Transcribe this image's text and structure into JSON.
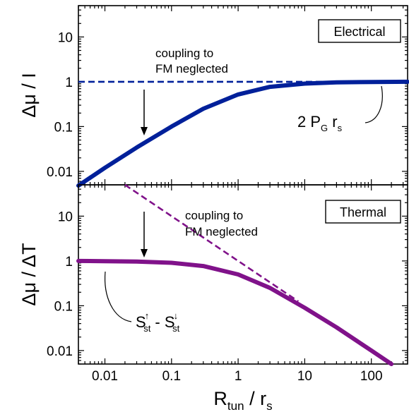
{
  "chart_data": [
    {
      "type": "line",
      "panel": "top",
      "box_label": "Electrical",
      "ylabel": "Δμ / I",
      "xscale": "log",
      "yscale": "log",
      "xlim": [
        0.004,
        350
      ],
      "ylim": [
        0.005,
        50
      ],
      "yticks": [
        0.01,
        0.1,
        1,
        10
      ],
      "ytick_labels": [
        "0.01",
        "0.1",
        "1",
        "10"
      ],
      "series": [
        {
          "style": "solid",
          "color": "#00209a",
          "x": [
            0.004,
            0.01,
            0.03,
            0.1,
            0.3,
            1,
            3,
            10,
            30,
            100,
            350
          ],
          "y": [
            0.0048,
            0.012,
            0.034,
            0.1,
            0.25,
            0.52,
            0.77,
            0.91,
            0.97,
            0.99,
            1.0
          ]
        },
        {
          "style": "dashed",
          "color": "#00209a",
          "x": [
            0.004,
            350
          ],
          "y": [
            1,
            1
          ]
        }
      ],
      "annotations": [
        {
          "text_lines": [
            "coupling to",
            "FM neglected"
          ]
        },
        {
          "type": "arrow",
          "x": 0.04,
          "y_from": 0.9,
          "y_to": 0.05
        },
        {
          "math": {
            "prefix": "2 P",
            "sub1": "G",
            "mid": " r",
            "sub2": "s"
          }
        }
      ]
    },
    {
      "type": "line",
      "panel": "bottom",
      "box_label": "Thermal",
      "ylabel": "Δμ / ΔT",
      "xlabel": {
        "main": "R",
        "sub1": "tun",
        "mid": " / r",
        "sub2": "s"
      },
      "xscale": "log",
      "yscale": "log",
      "xlim": [
        0.004,
        350
      ],
      "ylim": [
        0.005,
        50
      ],
      "xticks": [
        0.01,
        0.1,
        1,
        10,
        100
      ],
      "xtick_labels": [
        "0.01",
        "0.1",
        "1",
        "10",
        "100"
      ],
      "yticks": [
        0.01,
        0.1,
        1,
        10
      ],
      "ytick_labels": [
        "0.01",
        "0.1",
        "1",
        "10"
      ],
      "series": [
        {
          "style": "solid",
          "color": "#80128a",
          "x": [
            0.004,
            0.01,
            0.03,
            0.1,
            0.3,
            1,
            3,
            10,
            30,
            100,
            200
          ],
          "y": [
            1.0,
            0.99,
            0.97,
            0.91,
            0.77,
            0.5,
            0.25,
            0.09,
            0.033,
            0.01,
            0.005
          ]
        },
        {
          "style": "dashed",
          "color": "#80128a",
          "x": [
            0.02,
            8
          ],
          "y": [
            50,
            0.125
          ]
        }
      ],
      "annotations": [
        {
          "text_lines": [
            "coupling to",
            "FM neglected"
          ]
        },
        {
          "type": "arrow",
          "x": 0.04,
          "y_from": 25,
          "y_to": 1.25
        },
        {
          "math": {
            "s1": "S",
            "sup1": "↑",
            "sub1": "st",
            "dash": " - ",
            "s2": "S",
            "sup2": "↓",
            "sub2": "st"
          }
        }
      ]
    }
  ]
}
